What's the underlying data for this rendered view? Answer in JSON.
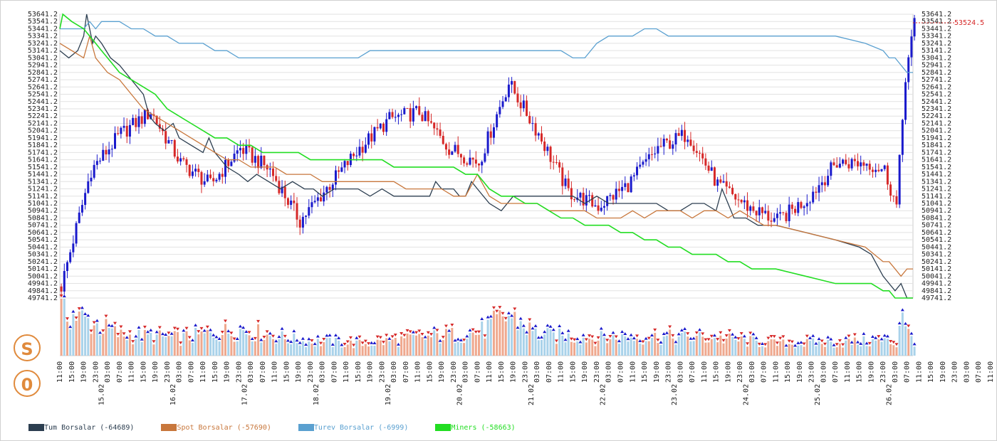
{
  "chart_data": {
    "type": "line",
    "y_ticks": [
      "53641.2",
      "53541.2",
      "53441.2",
      "53341.2",
      "53241.2",
      "53141.2",
      "53041.2",
      "52941.2",
      "52841.2",
      "52741.2",
      "52641.2",
      "52541.2",
      "52441.2",
      "52341.2",
      "52241.2",
      "52141.2",
      "52041.2",
      "51941.2",
      "51841.2",
      "51741.2",
      "51641.2",
      "51541.2",
      "51441.2",
      "51341.2",
      "51241.2",
      "51141.2",
      "51041.2",
      "50941.2",
      "50841.2",
      "50741.2",
      "50641.2",
      "50541.2",
      "50441.2",
      "50341.2",
      "50241.2",
      "50141.2",
      "50041.2",
      "49941.2",
      "49841.2",
      "49741.2"
    ],
    "ylim": [
      49741.2,
      53641.2
    ],
    "x_range_hours": [
      0,
      286
    ],
    "x_hour_ticks": [
      "11:00",
      "15:00",
      "19:00",
      "23:00",
      "03:00",
      "07:00",
      "11:00",
      "15:00",
      "19:00",
      "23:00",
      "03:00",
      "07:00",
      "11:00",
      "15:00",
      "19:00",
      "23:00",
      "03:00",
      "07:00",
      "11:00",
      "15:00",
      "19:00",
      "23:00",
      "03:00",
      "07:00",
      "11:00",
      "15:00",
      "19:00",
      "23:00",
      "03:00",
      "07:00",
      "11:00",
      "15:00",
      "19:00",
      "23:00",
      "03:00",
      "07:00",
      "11:00",
      "15:00",
      "19:00",
      "23:00",
      "03:00",
      "07:00",
      "11:00",
      "15:00",
      "19:00",
      "23:00",
      "03:00",
      "07:00",
      "11:00",
      "15:00",
      "19:00",
      "23:00",
      "03:00",
      "07:00",
      "11:00",
      "15:00",
      "19:00",
      "23:00",
      "03:00",
      "07:00",
      "11:00",
      "15:00",
      "19:00",
      "23:00",
      "03:00",
      "07:00",
      "11:00",
      "15:00",
      "19:00",
      "23:00",
      "03:00",
      "07:00",
      "11:00",
      "15:00",
      "19:00",
      "23:00",
      "03:00",
      "07:00",
      "11:00",
      "15:00",
      "19:00",
      "23:00",
      "03:00",
      "07:00",
      "11:00",
      "15:00",
      "19:00",
      "23:00",
      "03:00",
      "07:00",
      "11:00",
      "15:00",
      "19:00",
      "23:00",
      "03:00",
      "07:00",
      "11:00",
      "15:00",
      "19:00",
      "23:00",
      "03:00",
      "07:00",
      "11:00",
      "15:00",
      "19:00",
      "23:00",
      "03:00",
      "07:00",
      "11:00",
      "15:00",
      "19:00",
      "23:00",
      "03:00",
      "07:00",
      "11:00",
      "15:00",
      "19:00"
    ],
    "x_date_ticks": [
      {
        "label": "15.02",
        "hour": 14
      },
      {
        "label": "16.02",
        "hour": 38
      },
      {
        "label": "17.02",
        "hour": 62
      },
      {
        "label": "18.02",
        "hour": 86
      },
      {
        "label": "19.02",
        "hour": 110
      },
      {
        "label": "20.02",
        "hour": 134
      },
      {
        "label": "21.02",
        "hour": 158
      },
      {
        "label": "22.02",
        "hour": 182
      },
      {
        "label": "23.02",
        "hour": 206
      },
      {
        "label": "24.02",
        "hour": 230
      },
      {
        "label": "25.02",
        "hour": 254
      },
      {
        "label": "26.02",
        "hour": 278
      }
    ],
    "price_label": "53524.5",
    "price_value": 53524.5,
    "candles": {
      "hours": [
        0,
        10,
        20,
        30,
        40,
        50,
        60,
        70,
        80,
        90,
        100,
        110,
        120,
        130,
        140,
        150,
        160,
        170,
        180,
        190,
        200,
        210,
        220,
        230,
        240,
        250,
        260,
        270,
        276,
        280,
        283,
        286
      ],
      "close": [
        49900,
        51500,
        52000,
        52300,
        51600,
        51300,
        51800,
        51500,
        50800,
        51300,
        51800,
        52200,
        52300,
        51800,
        51600,
        52700,
        52000,
        51200,
        51000,
        51300,
        51800,
        52000,
        51300,
        51000,
        50800,
        51100,
        51600,
        51600,
        51500,
        51000,
        52800,
        53500
      ]
    },
    "volume": {
      "hours": [
        0,
        20,
        40,
        60,
        80,
        100,
        120,
        140,
        150,
        160,
        180,
        200,
        220,
        240,
        260,
        276,
        280,
        282,
        284,
        286
      ],
      "values": [
        80,
        35,
        30,
        45,
        25,
        20,
        30,
        40,
        70,
        35,
        30,
        32,
        30,
        20,
        22,
        25,
        20,
        90,
        40,
        15
      ]
    },
    "series": [
      {
        "name": "Tum Borsalar (-64689)",
        "color": "#2c3e50",
        "x": [
          0,
          3,
          6,
          8,
          9,
          10,
          11,
          12,
          14,
          17,
          20,
          24,
          28,
          30,
          32,
          35,
          38,
          40,
          44,
          48,
          50,
          52,
          56,
          60,
          63,
          66,
          70,
          74,
          78,
          82,
          85,
          88,
          92,
          96,
          100,
          104,
          108,
          112,
          116,
          120,
          124,
          126,
          128,
          132,
          134,
          136,
          138,
          140,
          144,
          148,
          152,
          156,
          160,
          164,
          168,
          172,
          176,
          180,
          184,
          188,
          192,
          196,
          200,
          204,
          208,
          212,
          216,
          220,
          222,
          224,
          226,
          230,
          234,
          240,
          250,
          260,
          268,
          272,
          276,
          278,
          280,
          282,
          283,
          284,
          286
        ],
        "y": [
          53141,
          53041,
          53141,
          53341,
          53641,
          53441,
          53241,
          53341,
          53241,
          53041,
          52941,
          52741,
          52541,
          52241,
          52141,
          52041,
          52141,
          51941,
          51841,
          51741,
          51941,
          51741,
          51541,
          51441,
          51341,
          51441,
          51341,
          51241,
          51341,
          51241,
          51241,
          51141,
          51241,
          51241,
          51241,
          51141,
          51241,
          51141,
          51141,
          51141,
          51141,
          51341,
          51241,
          51241,
          51141,
          51141,
          51341,
          51241,
          51041,
          50941,
          51141,
          51141,
          51141,
          51141,
          51141,
          51141,
          51041,
          51141,
          51041,
          51041,
          51041,
          51041,
          51041,
          50941,
          50941,
          51041,
          51041,
          50941,
          51241,
          51041,
          50841,
          50841,
          50741,
          50741,
          50641,
          50541,
          50441,
          50341,
          50041,
          49941,
          49841,
          49941,
          49841,
          49741,
          49741
        ]
      },
      {
        "name": "Spot Borsalar (-57690)",
        "color": "#c8773c",
        "x": [
          0,
          4,
          8,
          10,
          12,
          14,
          16,
          20,
          24,
          28,
          32,
          36,
          40,
          44,
          48,
          52,
          56,
          60,
          64,
          68,
          72,
          76,
          80,
          84,
          88,
          92,
          96,
          100,
          104,
          108,
          112,
          116,
          120,
          124,
          128,
          132,
          136,
          140,
          144,
          148,
          152,
          156,
          160,
          164,
          168,
          172,
          176,
          180,
          184,
          188,
          192,
          196,
          200,
          204,
          208,
          212,
          216,
          220,
          224,
          228,
          232,
          236,
          240,
          250,
          260,
          270,
          276,
          278,
          280,
          282,
          284,
          286
        ],
        "y": [
          53241,
          53141,
          53041,
          53341,
          53041,
          52941,
          52841,
          52741,
          52541,
          52341,
          52241,
          52141,
          52041,
          51941,
          51841,
          51741,
          51641,
          51641,
          51541,
          51541,
          51541,
          51441,
          51441,
          51441,
          51341,
          51341,
          51341,
          51341,
          51341,
          51341,
          51341,
          51241,
          51241,
          51241,
          51241,
          51141,
          51141,
          51441,
          51141,
          51041,
          51041,
          51041,
          51041,
          50941,
          50941,
          50941,
          50941,
          50841,
          50841,
          50841,
          50941,
          50841,
          50941,
          50941,
          50941,
          50841,
          50941,
          50941,
          50841,
          50941,
          50841,
          50741,
          50741,
          50641,
          50541,
          50441,
          50241,
          50241,
          50141,
          50041,
          50141,
          50141
        ]
      },
      {
        "name": "Turev Borsalar (-6999)",
        "color": "#5aa0d0",
        "x": [
          0,
          4,
          8,
          10,
          12,
          14,
          16,
          20,
          24,
          28,
          32,
          36,
          40,
          44,
          48,
          52,
          56,
          60,
          64,
          68,
          72,
          76,
          80,
          84,
          88,
          92,
          96,
          100,
          104,
          108,
          112,
          116,
          120,
          124,
          128,
          132,
          136,
          140,
          144,
          148,
          152,
          156,
          160,
          164,
          168,
          172,
          176,
          180,
          184,
          188,
          192,
          196,
          200,
          204,
          208,
          212,
          216,
          220,
          224,
          228,
          232,
          236,
          240,
          250,
          260,
          270,
          276,
          278,
          280,
          282,
          284,
          286
        ],
        "y": [
          53441,
          53441,
          53441,
          53541,
          53441,
          53541,
          53541,
          53541,
          53441,
          53441,
          53341,
          53341,
          53241,
          53241,
          53241,
          53141,
          53141,
          53041,
          53041,
          53041,
          53041,
          53041,
          53041,
          53041,
          53041,
          53041,
          53041,
          53041,
          53141,
          53141,
          53141,
          53141,
          53141,
          53141,
          53141,
          53141,
          53141,
          53141,
          53141,
          53141,
          53141,
          53141,
          53141,
          53141,
          53141,
          53041,
          53041,
          53241,
          53341,
          53341,
          53341,
          53441,
          53441,
          53341,
          53341,
          53341,
          53341,
          53341,
          53341,
          53341,
          53341,
          53341,
          53341,
          53341,
          53341,
          53241,
          53141,
          53041,
          53041,
          52941,
          52841,
          52841
        ]
      },
      {
        "name": "Miners (-58663)",
        "color": "#22dd22",
        "x": [
          0,
          1,
          4,
          8,
          10,
          12,
          14,
          16,
          18,
          20,
          24,
          28,
          32,
          36,
          40,
          44,
          48,
          52,
          56,
          60,
          64,
          68,
          72,
          76,
          80,
          84,
          88,
          92,
          96,
          100,
          104,
          108,
          112,
          116,
          120,
          124,
          128,
          132,
          136,
          140,
          144,
          148,
          152,
          156,
          160,
          164,
          168,
          172,
          176,
          180,
          184,
          188,
          192,
          196,
          200,
          204,
          208,
          212,
          216,
          220,
          224,
          228,
          232,
          236,
          240,
          250,
          260,
          268,
          272,
          276,
          278,
          280,
          282,
          283,
          284,
          286
        ],
        "y": [
          53441,
          53641,
          53541,
          53441,
          53341,
          53241,
          53141,
          53041,
          52941,
          52841,
          52741,
          52641,
          52541,
          52341,
          52241,
          52141,
          52041,
          51941,
          51941,
          51841,
          51841,
          51741,
          51741,
          51741,
          51741,
          51641,
          51641,
          51641,
          51641,
          51641,
          51641,
          51641,
          51541,
          51541,
          51541,
          51541,
          51541,
          51541,
          51441,
          51441,
          51241,
          51141,
          51141,
          51041,
          51041,
          50941,
          50841,
          50841,
          50741,
          50741,
          50741,
          50641,
          50641,
          50541,
          50541,
          50441,
          50441,
          50341,
          50341,
          50341,
          50241,
          50241,
          50141,
          50141,
          50141,
          50041,
          49941,
          49941,
          49941,
          49841,
          49841,
          49741,
          49741,
          49741,
          49741,
          49741
        ]
      }
    ]
  },
  "badges": {
    "s": "S",
    "o": "0"
  },
  "legend": [
    {
      "label": "Tum Borsalar (-64689)",
      "color": "#2c3e50"
    },
    {
      "label": "Spot Borsalar (-57690)",
      "color": "#c8773c"
    },
    {
      "label": "Turev Borsalar (-6999)",
      "color": "#5aa0d0"
    },
    {
      "label": "Miners (-58663)",
      "color": "#22dd22"
    }
  ]
}
